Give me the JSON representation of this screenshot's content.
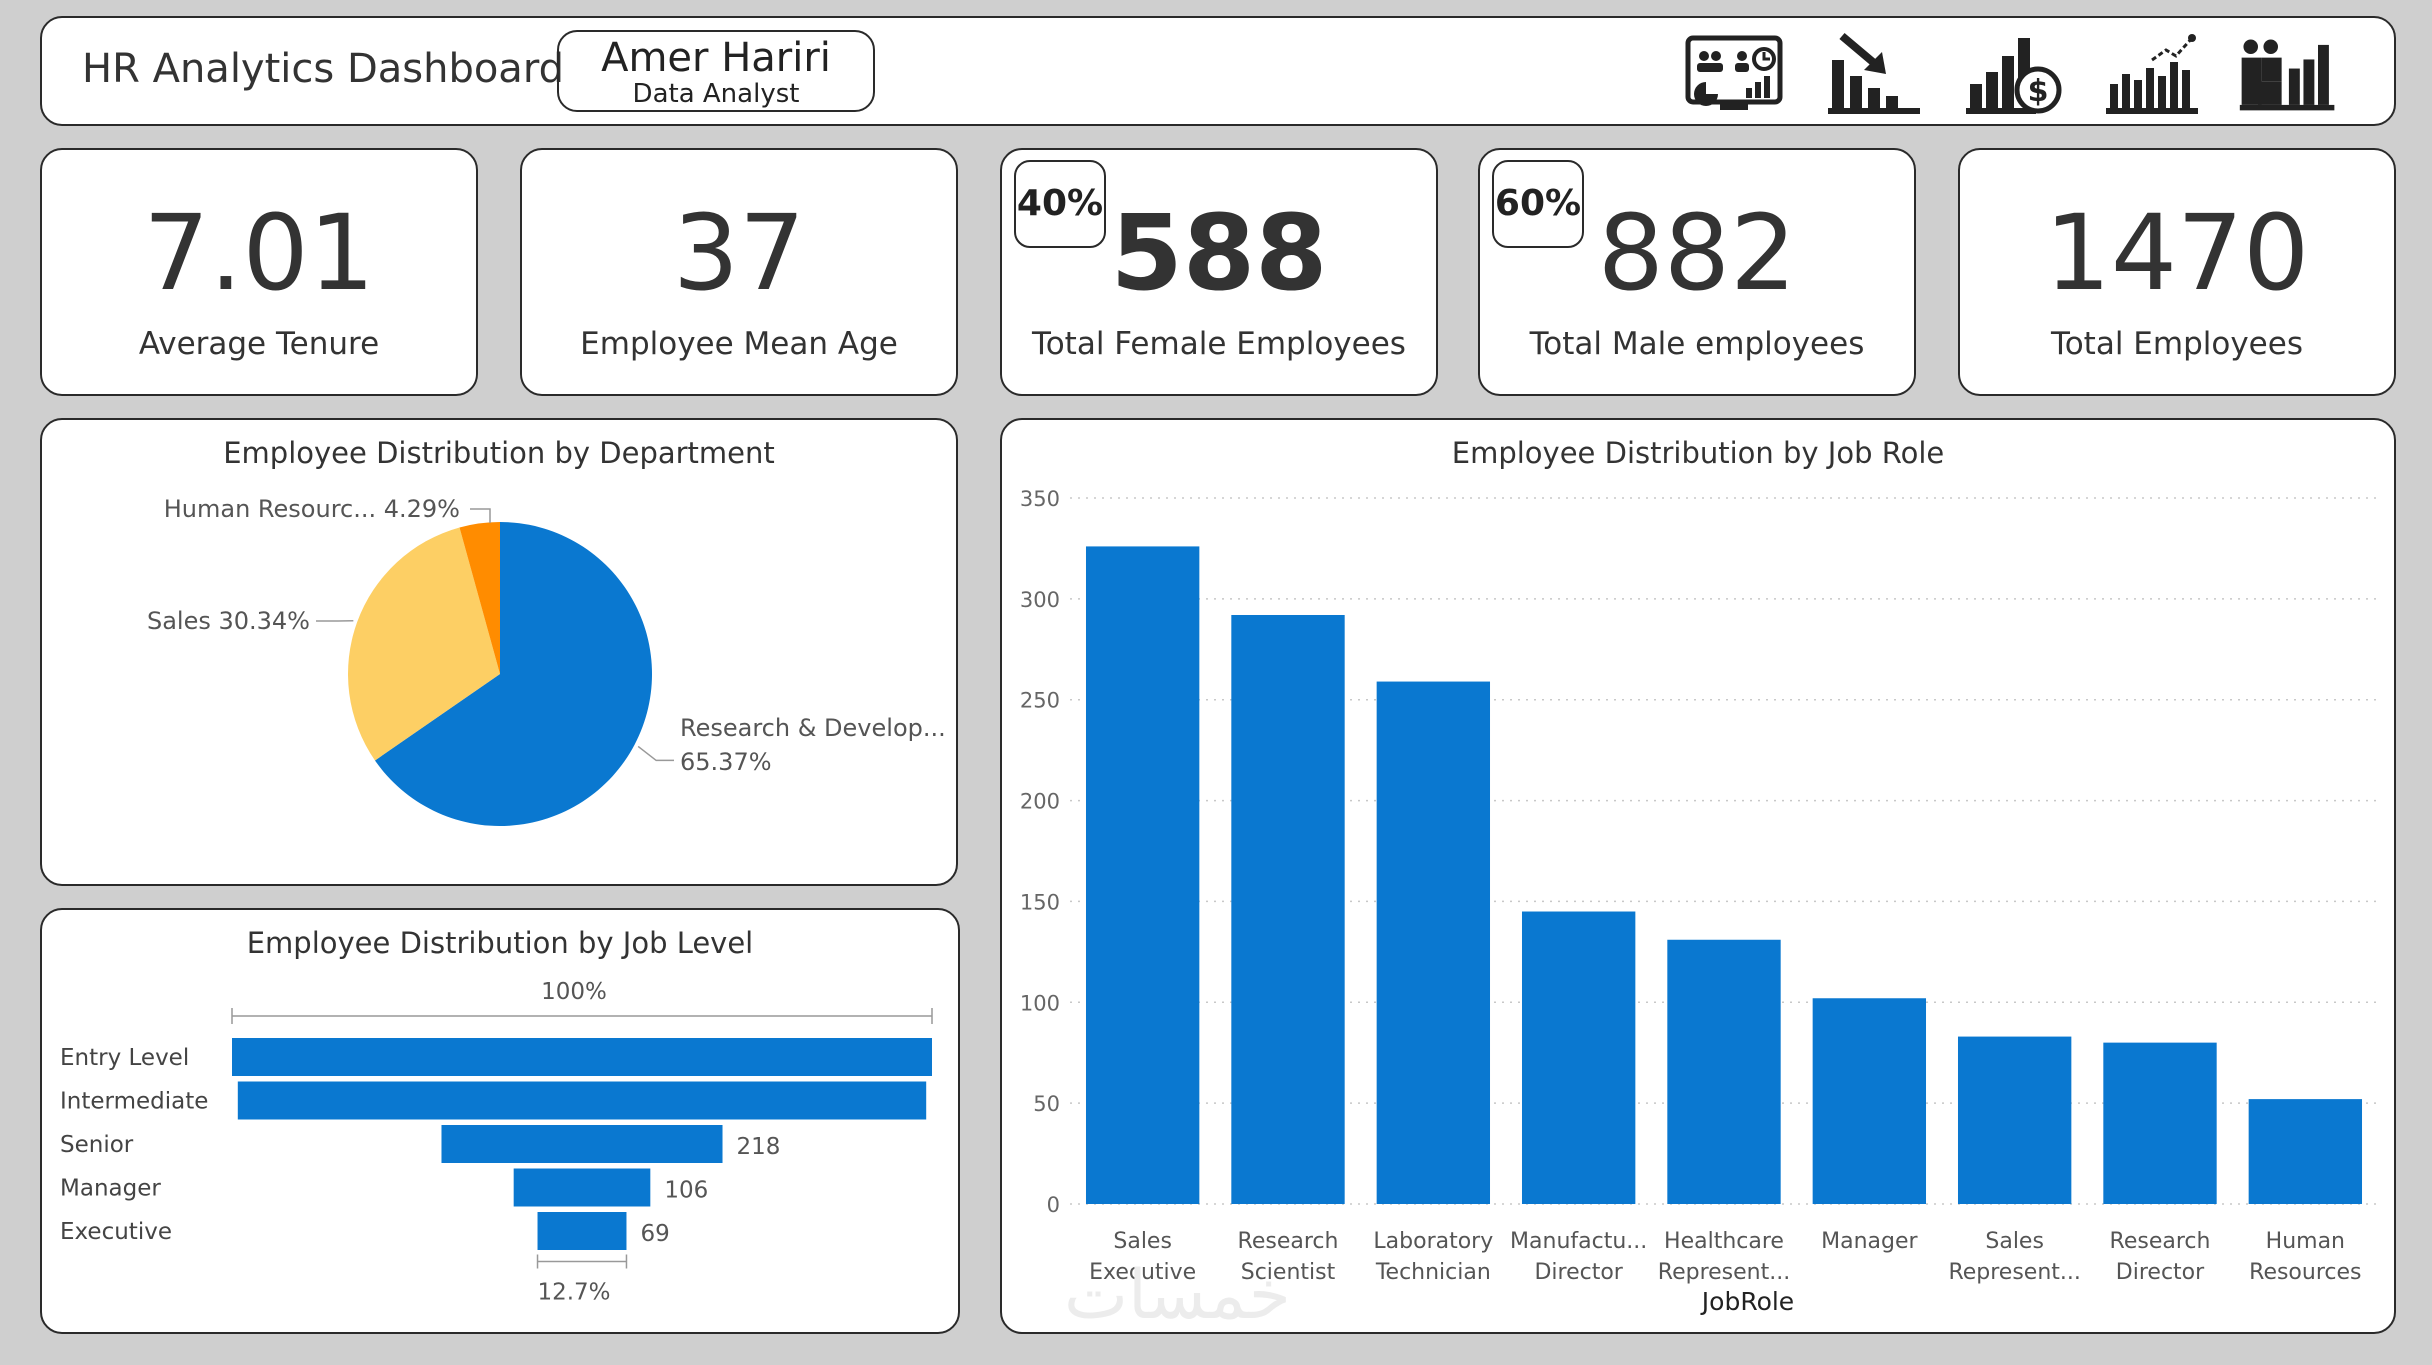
{
  "header": {
    "title": "HR Analytics Dashboard",
    "author_name": "Amer Hariri",
    "author_role": "Data Analyst",
    "nav_icons": [
      "presentation-dashboard-icon",
      "declining-bar-chart-icon",
      "bar-chart-dollar-icon",
      "bar-chart-trend-icon",
      "people-bar-chart-icon"
    ]
  },
  "kpis": [
    {
      "value": "7.01",
      "label": "Average Tenure"
    },
    {
      "value": "37",
      "label": "Employee Mean Age"
    },
    {
      "value": "588",
      "label": "Total Female Employees",
      "badge": "40%"
    },
    {
      "value": "882",
      "label": "Total Male employees",
      "badge": "60%"
    },
    {
      "value": "1470",
      "label": "Total Employees"
    }
  ],
  "watermark": "خمسات",
  "colors": {
    "blue": "#0a78d0",
    "yellow": "#fdcf64",
    "orange": "#ff8c00"
  },
  "chart_data": [
    {
      "type": "pie",
      "title": "Employee Distribution by Department",
      "slices": [
        {
          "label": "Research & Develop...",
          "value": 65.37,
          "display": "65.37%",
          "color": "#0a78d0"
        },
        {
          "label": "Sales",
          "value": 30.34,
          "display": "30.34%",
          "color": "#fdcf64"
        },
        {
          "label": "Human Resourc...",
          "value": 4.29,
          "display": "4.29%",
          "color": "#ff8c00"
        }
      ]
    },
    {
      "type": "bar",
      "orientation": "horizontal-funnel",
      "title": "Employee Distribution by Job Level",
      "categories": [
        "Entry Level",
        "Intermediate",
        "Senior",
        "Manager",
        "Executive"
      ],
      "values": [
        543,
        534,
        218,
        106,
        69
      ],
      "data_labels": [
        "",
        "",
        "218",
        "106",
        "69"
      ],
      "top_label": "100%",
      "bottom_label": "12.7%"
    },
    {
      "type": "bar",
      "title": "Employee Distribution by Job Role",
      "xlabel": "JobRole",
      "ylabel": "",
      "categories": [
        [
          "Sales",
          "Executive"
        ],
        [
          "Research",
          "Scientist"
        ],
        [
          "Laboratory",
          "Technician"
        ],
        [
          "Manufactu...",
          "Director"
        ],
        [
          "Healthcare",
          "Represent..."
        ],
        [
          "Manager"
        ],
        [
          "Sales",
          "Represent..."
        ],
        [
          "Research",
          "Director"
        ],
        [
          "Human",
          "Resources"
        ]
      ],
      "values": [
        326,
        292,
        259,
        145,
        131,
        102,
        83,
        80,
        52
      ],
      "ylim": [
        0,
        350
      ],
      "yticks": [
        0,
        50,
        100,
        150,
        200,
        250,
        300,
        350
      ],
      "grid": true
    }
  ]
}
